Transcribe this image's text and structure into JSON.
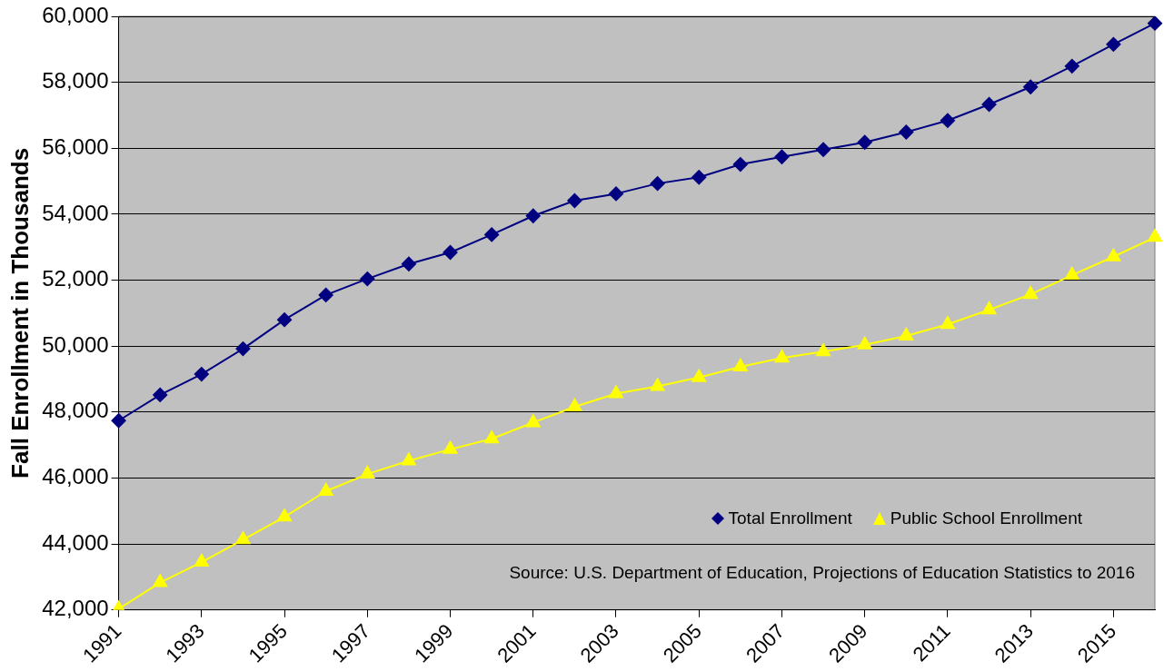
{
  "chart_data": {
    "type": "line",
    "ylabel": "Fall Enrollment in Thousands",
    "categories": [
      "1991",
      null,
      "1993",
      null,
      "1995",
      null,
      "1997",
      null,
      "1999",
      null,
      "2001",
      null,
      "2003",
      null,
      "2005",
      null,
      "2007",
      null,
      "2009",
      null,
      "2011",
      null,
      "2013",
      null,
      "2015",
      null
    ],
    "series": [
      {
        "name": "Total Enrollment",
        "color": "#000080",
        "marker": "diamond",
        "values": [
          47740,
          48520,
          49150,
          49920,
          50800,
          51550,
          52040,
          52490,
          52840,
          53380,
          53950,
          54410,
          54620,
          54930,
          55120,
          55510,
          55740,
          55960,
          56180,
          56490,
          56840,
          57330,
          57860,
          58490,
          59150,
          59790
        ]
      },
      {
        "name": "Public School Enrollment",
        "color": "#ffff00",
        "marker": "triangle",
        "values": [
          42030,
          42830,
          43450,
          44130,
          44820,
          45600,
          46120,
          46520,
          46870,
          47190,
          47680,
          48160,
          48560,
          48780,
          49050,
          49370,
          49640,
          49830,
          50040,
          50310,
          50660,
          51100,
          51570,
          52150,
          52710,
          53300
        ]
      }
    ],
    "ylim": [
      42000,
      60000
    ],
    "yticks": [
      {
        "value": 42000,
        "label": "42,000"
      },
      {
        "value": 44000,
        "label": "44,000"
      },
      {
        "value": 46000,
        "label": "46,000"
      },
      {
        "value": 48000,
        "label": "48,000"
      },
      {
        "value": 50000,
        "label": "50,000"
      },
      {
        "value": 52000,
        "label": "52,000"
      },
      {
        "value": 54000,
        "label": "54,000"
      },
      {
        "value": 56000,
        "label": "56,000"
      },
      {
        "value": 58000,
        "label": "58,000"
      },
      {
        "value": 60000,
        "label": "60,000"
      }
    ],
    "grid": "y",
    "legend": "bottom right",
    "annotations": [
      "Source: U.S. Department of Education, Projections of Education Statistics to 2016"
    ]
  }
}
